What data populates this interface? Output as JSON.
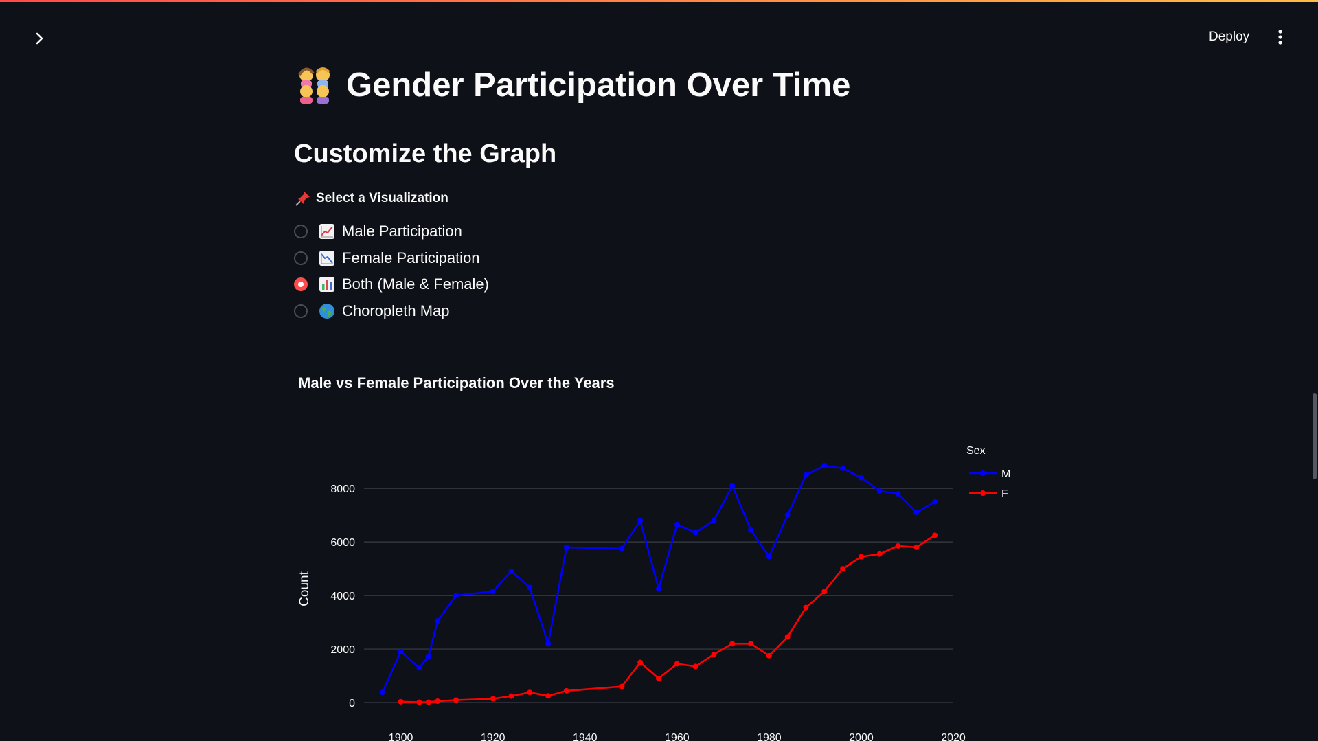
{
  "app": {
    "deploy_label": "Deploy"
  },
  "page": {
    "title": "Gender Participation Over Time",
    "subtitle": "Customize the Graph",
    "select_label": "Select a Visualization",
    "options": [
      {
        "label": "Male Participation",
        "icon": "chart-increasing-icon",
        "selected": false
      },
      {
        "label": "Female Participation",
        "icon": "chart-decreasing-icon",
        "selected": false
      },
      {
        "label": "Both (Male & Female)",
        "icon": "bar-chart-icon",
        "selected": true
      },
      {
        "label": "Choropleth Map",
        "icon": "globe-icon",
        "selected": false
      }
    ]
  },
  "chart_data": {
    "type": "line",
    "title": "Male vs Female Participation Over the Years",
    "ylabel": "Count",
    "xlabel": "",
    "legend_title": "Sex",
    "legend_position": "top-right outside",
    "grid": true,
    "xlim": [
      1892,
      2020
    ],
    "ylim": [
      0,
      8800
    ],
    "x_ticks": [
      1900,
      1920,
      1940,
      1960,
      1980,
      2000,
      2020
    ],
    "y_ticks": [
      0,
      2000,
      4000,
      6000,
      8000
    ],
    "series": [
      {
        "name": "M",
        "color": "#0000ff",
        "points": [
          [
            1896,
            380
          ],
          [
            1900,
            1900
          ],
          [
            1904,
            1300
          ],
          [
            1906,
            1720
          ],
          [
            1908,
            3050
          ],
          [
            1912,
            4000
          ],
          [
            1920,
            4150
          ],
          [
            1924,
            4900
          ],
          [
            1928,
            4300
          ],
          [
            1932,
            2200
          ],
          [
            1936,
            5800
          ],
          [
            1948,
            5750
          ],
          [
            1952,
            6800
          ],
          [
            1956,
            4250
          ],
          [
            1960,
            6650
          ],
          [
            1964,
            6350
          ],
          [
            1968,
            6800
          ],
          [
            1972,
            8100
          ],
          [
            1976,
            6450
          ],
          [
            1980,
            5450
          ],
          [
            1984,
            7000
          ],
          [
            1988,
            8500
          ],
          [
            1992,
            8850
          ],
          [
            1996,
            8750
          ],
          [
            2000,
            8400
          ],
          [
            2004,
            7900
          ],
          [
            2008,
            7800
          ],
          [
            2012,
            7100
          ],
          [
            2016,
            7500
          ]
        ]
      },
      {
        "name": "F",
        "color": "#ff0000",
        "points": [
          [
            1900,
            30
          ],
          [
            1904,
            10
          ],
          [
            1906,
            10
          ],
          [
            1908,
            50
          ],
          [
            1912,
            90
          ],
          [
            1920,
            140
          ],
          [
            1924,
            240
          ],
          [
            1928,
            380
          ],
          [
            1932,
            250
          ],
          [
            1936,
            440
          ],
          [
            1948,
            600
          ],
          [
            1952,
            1500
          ],
          [
            1956,
            900
          ],
          [
            1960,
            1450
          ],
          [
            1964,
            1350
          ],
          [
            1968,
            1800
          ],
          [
            1972,
            2200
          ],
          [
            1976,
            2200
          ],
          [
            1980,
            1750
          ],
          [
            1984,
            2450
          ],
          [
            1988,
            3550
          ],
          [
            1992,
            4150
          ],
          [
            1996,
            5000
          ],
          [
            2000,
            5450
          ],
          [
            2004,
            5550
          ],
          [
            2008,
            5850
          ],
          [
            2012,
            5800
          ],
          [
            2016,
            6250
          ]
        ]
      }
    ]
  }
}
